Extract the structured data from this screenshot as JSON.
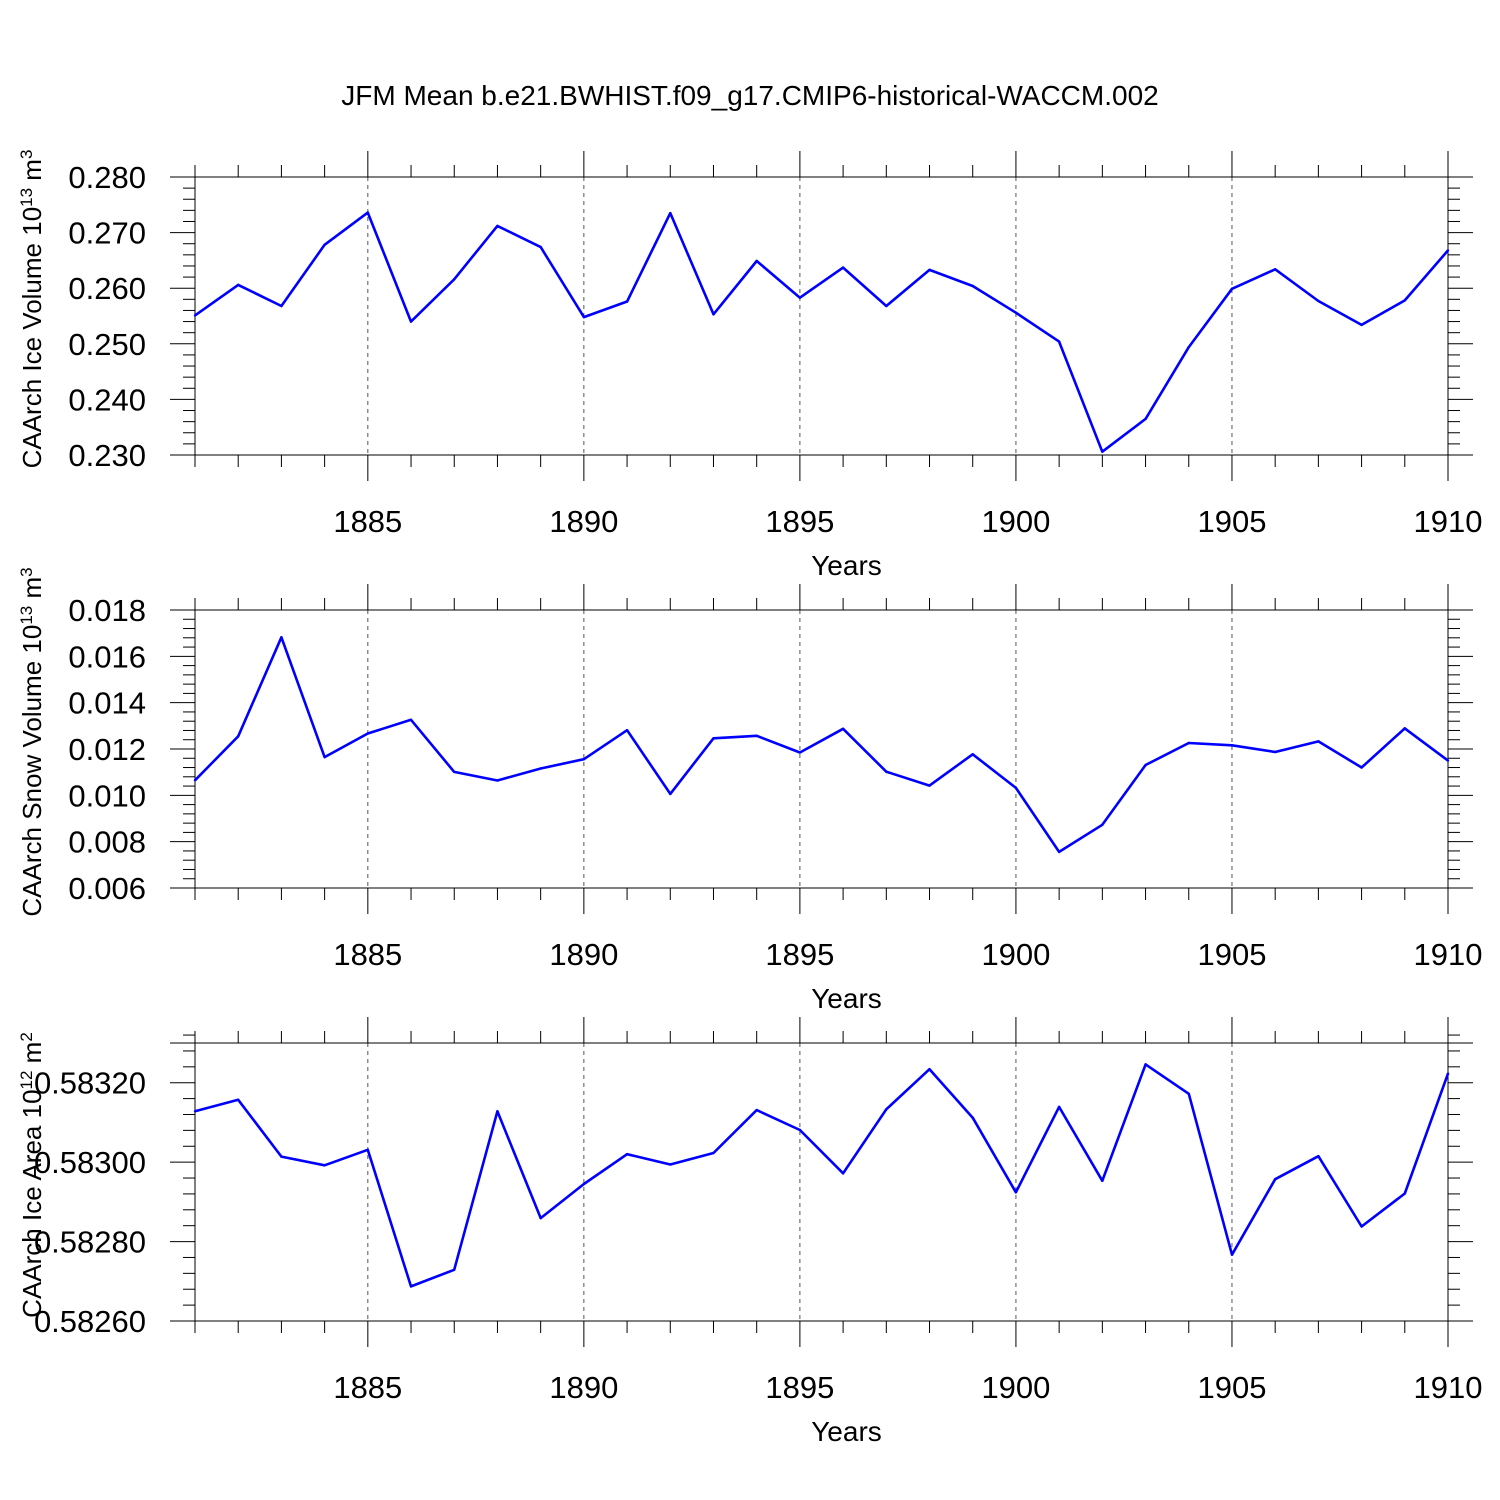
{
  "figure": {
    "title": "JFM Mean b.e21.BWHIST.f09_g17.CMIP6-historical-WACCM.002"
  },
  "chart_data": [
    {
      "type": "line",
      "ylabel": "CAArch Ice Volume 10",
      "ylabel_sup_exp": "13",
      "ylabel_unit": " m",
      "ylabel_sup_unit": "3",
      "xlabel": "Years",
      "xlim": [
        1881,
        1910
      ],
      "ylim": [
        0.23,
        0.28
      ],
      "x_ticks": [
        "1885",
        "1890",
        "1895",
        "1900",
        "1905",
        "1910"
      ],
      "y_ticks": [
        "0.230",
        "0.240",
        "0.250",
        "0.260",
        "0.270",
        "0.280"
      ],
      "grid": "vertical dashed at major x ticks",
      "line_color": "#0000ff",
      "x": [
        1881,
        1882,
        1883,
        1884,
        1885,
        1886,
        1887,
        1888,
        1889,
        1890,
        1891,
        1892,
        1893,
        1894,
        1895,
        1896,
        1897,
        1898,
        1899,
        1900,
        1901,
        1902,
        1903,
        1904,
        1905,
        1906,
        1907,
        1908,
        1909,
        1910
      ],
      "values": [
        0.2551,
        0.2606,
        0.2568,
        0.2678,
        0.2736,
        0.254,
        0.2616,
        0.2712,
        0.2674,
        0.2548,
        0.2576,
        0.2735,
        0.2553,
        0.2649,
        0.2583,
        0.2637,
        0.2568,
        0.2633,
        0.2604,
        0.2556,
        0.2504,
        0.2306,
        0.2365,
        0.2494,
        0.2599,
        0.2634,
        0.2577,
        0.2534,
        0.2578,
        0.2668
      ]
    },
    {
      "type": "line",
      "ylabel": "CAArch Snow Volume 10",
      "ylabel_sup_exp": "13",
      "ylabel_unit": " m",
      "ylabel_sup_unit": "3",
      "xlabel": "Years",
      "xlim": [
        1881,
        1910
      ],
      "ylim": [
        0.006,
        0.018
      ],
      "x_ticks": [
        "1885",
        "1890",
        "1895",
        "1900",
        "1905",
        "1910"
      ],
      "y_ticks": [
        "0.006",
        "0.008",
        "0.010",
        "0.012",
        "0.014",
        "0.016",
        "0.018"
      ],
      "grid": "vertical dashed at major x ticks",
      "line_color": "#0000ff",
      "x": [
        1881,
        1882,
        1883,
        1884,
        1885,
        1886,
        1887,
        1888,
        1889,
        1890,
        1891,
        1892,
        1893,
        1894,
        1895,
        1896,
        1897,
        1898,
        1899,
        1900,
        1901,
        1902,
        1903,
        1904,
        1905,
        1906,
        1907,
        1908,
        1909,
        1910
      ],
      "values": [
        0.01065,
        0.01255,
        0.01682,
        0.01165,
        0.01267,
        0.01326,
        0.01101,
        0.01064,
        0.01116,
        0.01156,
        0.01281,
        0.01006,
        0.01246,
        0.01257,
        0.01185,
        0.01287,
        0.01102,
        0.01042,
        0.01177,
        0.01032,
        0.00756,
        0.00873,
        0.01131,
        0.01226,
        0.01216,
        0.01187,
        0.01233,
        0.0112,
        0.01289,
        0.0115
      ]
    },
    {
      "type": "line",
      "ylabel": "CAArch Ice Area 10",
      "ylabel_sup_exp": "12",
      "ylabel_unit": " m",
      "ylabel_sup_unit": "2",
      "xlabel": "Years",
      "xlim": [
        1881,
        1910
      ],
      "ylim": [
        0.5826,
        0.5833
      ],
      "x_ticks": [
        "1885",
        "1890",
        "1895",
        "1900",
        "1905",
        "1910"
      ],
      "y_ticks": [
        "0.58260",
        "0.58280",
        "0.58300",
        "0.58320"
      ],
      "grid": "vertical dashed at major x ticks",
      "line_color": "#0000ff",
      "x": [
        1881,
        1882,
        1883,
        1884,
        1885,
        1886,
        1887,
        1888,
        1889,
        1890,
        1891,
        1892,
        1893,
        1894,
        1895,
        1896,
        1897,
        1898,
        1899,
        1900,
        1901,
        1902,
        1903,
        1904,
        1905,
        1906,
        1907,
        1908,
        1909,
        1910
      ],
      "values": [
        0.583128,
        0.583157,
        0.583014,
        0.582992,
        0.583031,
        0.582687,
        0.582729,
        0.583128,
        0.582859,
        0.582945,
        0.58302,
        0.582994,
        0.583023,
        0.583131,
        0.583081,
        0.582972,
        0.583133,
        0.583234,
        0.583112,
        0.582924,
        0.583139,
        0.582953,
        0.583246,
        0.583172,
        0.582767,
        0.582957,
        0.583015,
        0.582838,
        0.582921,
        0.583223
      ]
    }
  ]
}
